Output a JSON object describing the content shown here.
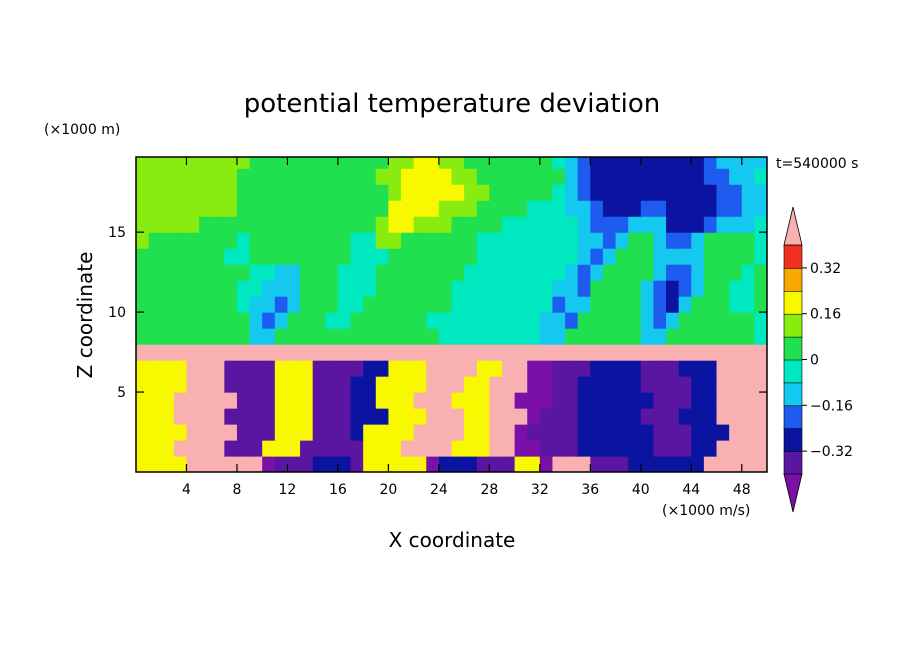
{
  "chart_data": {
    "type": "heatmap",
    "title": "potential temperature deviation",
    "xlabel": "X coordinate",
    "ylabel": "Z coordinate",
    "x_unit": "(×1000 m/s)",
    "y_unit": "(×1000 m)",
    "time_label": "t=540000 s",
    "xlim": [
      0,
      50
    ],
    "ylim": [
      0,
      19.7
    ],
    "x_ticks": [
      4,
      8,
      12,
      16,
      20,
      24,
      28,
      32,
      36,
      40,
      44,
      48
    ],
    "y_ticks": [
      5,
      10,
      15
    ],
    "colorbar": {
      "levels": [
        -0.4,
        -0.32,
        -0.24,
        -0.16,
        -0.08,
        0,
        0.08,
        0.16,
        0.24,
        0.32,
        0.4
      ],
      "tick_labels": [
        "0.32",
        "0.16",
        "0",
        "−0.16",
        "−0.32"
      ],
      "tick_values": [
        0.32,
        0.16,
        0,
        -0.16,
        -0.32
      ],
      "colors": [
        "#7a10a8",
        "#5a16a0",
        "#0a14a0",
        "#1e5cf0",
        "#14c8f0",
        "#00e8c0",
        "#20e050",
        "#88ec10",
        "#f8f800",
        "#f8a800",
        "#f03020",
        "#f8b0b0"
      ],
      "extend": "both"
    },
    "field": {
      "nx": 50,
      "nz": 20,
      "x_step": 1,
      "z_step": 1,
      "rows_bottom_to_top": [
        "hhhhmmmmmmlaaabbbahhhhhlbbbaaahhlmmmaaabbbbbbmmmmm",
        "hhhmmmmaaahhhaaaaahhhmmmmhhhmmllaaabbbbbbaaabbmmmm",
        "hhhhmmmmaaahhhaaabhhhhmmmmhhmmlaaaabbbbbbaaabbbmmm",
        "hhhmmmmaaaahhhaaabbbhhhmmmhhmmmlaaabbbbbaaabbbmmmm",
        "hhhmmmmmaaahhhaaabbhhhmmmhhhmmlllaabbbbbbaaabbmmmm",
        "hhhhmmmaaaahhhaaabbhhhhmmmhhmmmllaabbbbbaaaabbmmmm",
        "hhhhmmmaaaahhhaaaabbhhhmmmmhhmmllaaabbbbaaabbbmmmm",
        "jjjjjjjjjjjjjjjjjjjjjjjjjjjjjjjjjjjjjjjjjjjjjjjjjj",
        "fffffffffddfffffffffffffeeeeeeeeddffffffddfffffffe",
        "fffffffffdcdfffeeffffffeeeeeeeeeddcfffffdcdffffffe",
        "ffffffffeddcdfffeefffffffeeeeeeeecddffffdcbdfffeef",
        "ffffffffeedddfffeeeffffffeeeeeeeeddcffffdcbcdffeef",
        "fffffffffeeddfffeeefffffffeeeeeeeedcdffffdccdfffef",
        "fffffffeeffffffffeeefffffffeeeeeeeedcdfffddddffffe",
        "gfffffffeffffffffeeggffffffeeeeeeeeddcdffdccdffffe",
        "gggggffffffffffffffghhgggffffeeeeeedcccdddbbbcddde",
        "ggggggggffffffffffffhhhhgggffffeeeddcbbbccbbbbccdd",
        "ggggggggffffffffffffghhhhhggfffffedcbbbbbbbbbbccdd",
        "ggggggggfffffffffffgghhhhggfffffffdcbbbbbbbbbccdde",
        "gggggggggfffffffffffgghhggfffffffedcbbbbbbbbbcdddd"
      ],
      "legend": {
        "a": -0.36,
        "b": -0.28,
        "c": -0.2,
        "d": -0.12,
        "e": -0.04,
        "f": 0.04,
        "g": 0.12,
        "h": 0.2,
        "j": 0.44,
        "l": -0.44,
        "m": 0.44
      }
    }
  }
}
